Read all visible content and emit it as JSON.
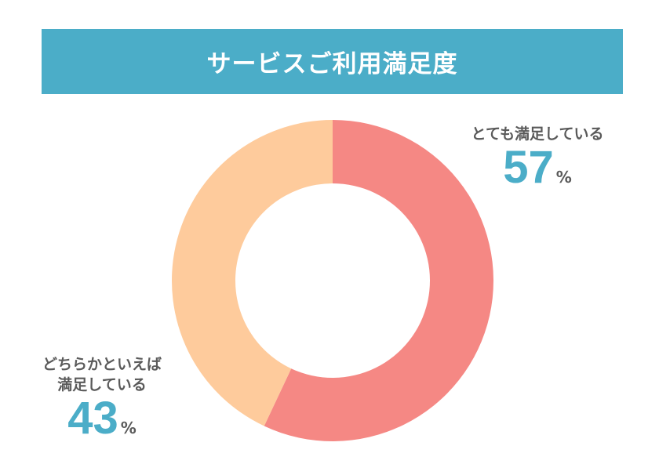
{
  "title": "サービスご利用満足度",
  "chart_data": {
    "type": "pie",
    "title": "サービスご利用満足度",
    "donut": true,
    "unit": "%",
    "slices": [
      {
        "label": "とても満足している",
        "value": 57,
        "color": "#f58884"
      },
      {
        "label": "どちらかといえば満足している",
        "label_lines": [
          "どちらかといえば",
          "満足している"
        ],
        "value": 43,
        "color": "#fecb9c"
      }
    ],
    "value_color": "#4badc8",
    "label_color": "#5a5a5a"
  },
  "colors": {
    "header_bg": "#4badc8",
    "header_text": "#ffffff",
    "accent": "#4badc8"
  }
}
